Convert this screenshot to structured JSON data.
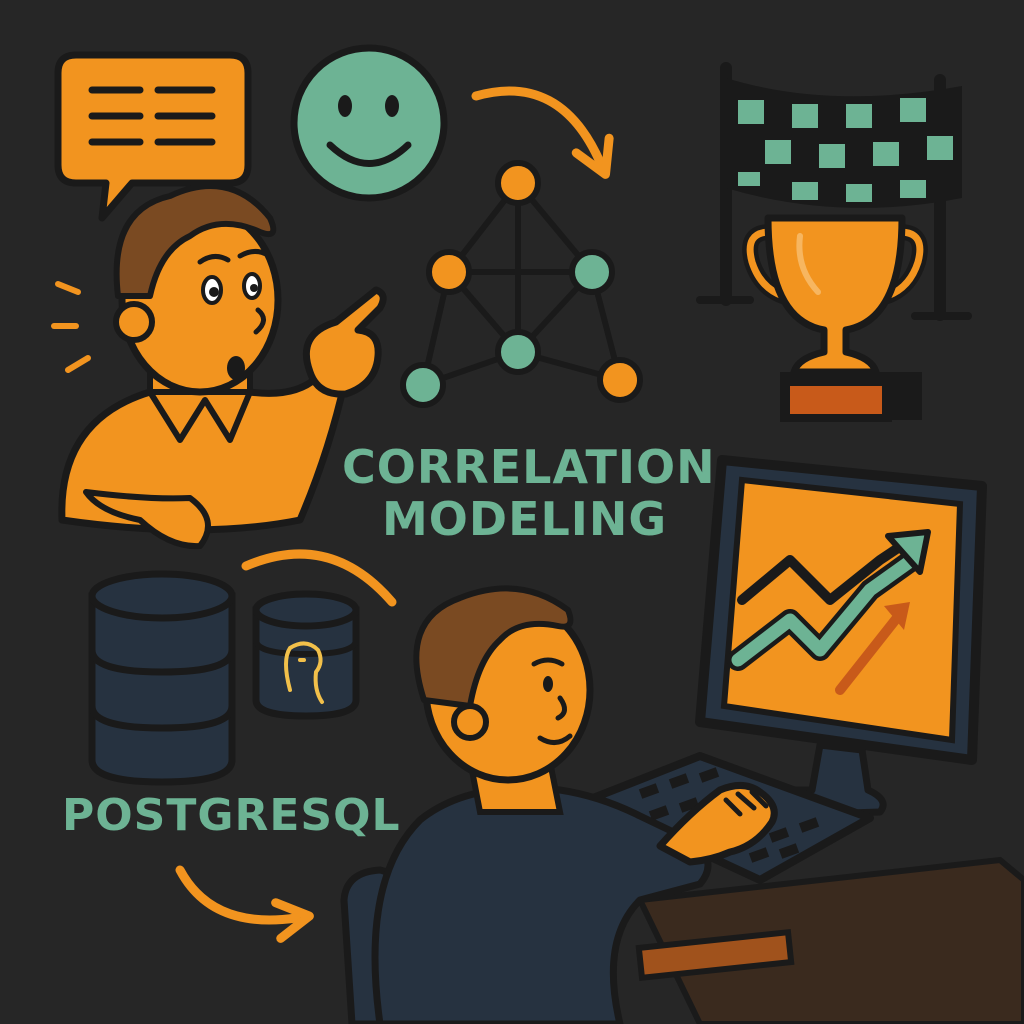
{
  "title": {
    "line1": "CORRELATION",
    "line2": "MODELING"
  },
  "database_label": "POSTGRESQL",
  "colors": {
    "background": "#262626",
    "orange": "#F2941F",
    "green": "#6DB394",
    "outline": "#1A1A1A",
    "hair": "#7A4A22",
    "dark_navy": "#263240",
    "label_green": "#6DB394"
  },
  "icons": [
    "speech-bubble-icon",
    "smiley-face-icon",
    "network-graph-icon",
    "checkered-flag-icon",
    "trophy-icon",
    "database-icon",
    "postgresql-elephant-icon",
    "monitor-icon",
    "rising-trend-chart-icon",
    "keyboard-icon",
    "curved-arrow-icon"
  ]
}
